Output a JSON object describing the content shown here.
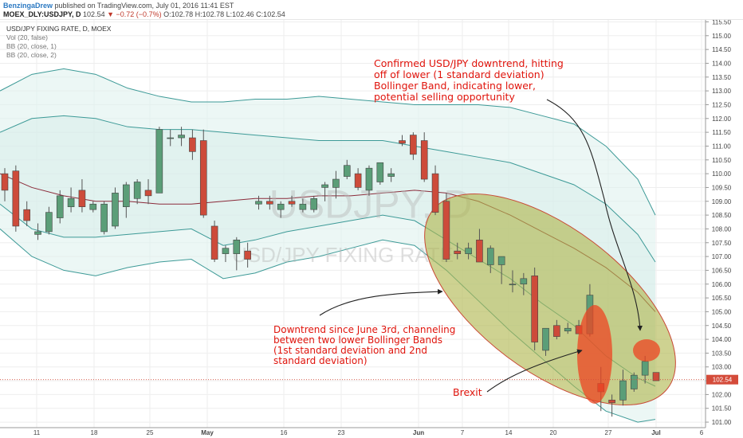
{
  "header": {
    "author": "BenzingaDrew",
    "publish_text": "published on TradingView.com, July 01, 2016 11:41 EST",
    "symbol": "MOEX_DLY:USDJPY, D",
    "last": "102.54",
    "change": "−0.72 (−0.7%)",
    "ohlc": "O:102.78 H:102.78 L:102.46 C:102.54"
  },
  "legend": {
    "title": "USD/JPY FIXING RATE, D, MOEX",
    "items": [
      "Vol (20, false)",
      "BB (20, close, 1)",
      "BB (20, close, 2)"
    ]
  },
  "watermark": {
    "big": "USDJPY, D",
    "small": "USD/JPY FIXING RATE"
  },
  "annotations": {
    "confirmed": [
      "Confirmed USD/JPY downtrend, hitting",
      "off of lower (1 standard deviation)",
      "Bollinger Band, indicating lower,",
      "potential selling opportunity"
    ],
    "downtrend": [
      "Downtrend since June 3rd, channeling",
      "between two lower Bollinger Bands",
      "(1st standard deviation and 2nd",
      "standard deviation)"
    ],
    "brexit": "Brexit"
  },
  "colors": {
    "up": "#5b9e78",
    "down": "#cd4b3a",
    "annotation": "#e0140c",
    "channel": "#b0b74d",
    "band": "#3d9a97",
    "mid": "#8b2b3a",
    "price_line": "#d44b3a"
  },
  "chart_data": {
    "type": "candlestick",
    "title": "USD/JPY FIXING RATE, D, MOEX",
    "current_price": "102.54",
    "y_axis": {
      "range": [
        100.8,
        115.6
      ],
      "ticks": [
        "101.00",
        "101.50",
        "102.00",
        "102.50",
        "103.00",
        "103.50",
        "104.00",
        "104.50",
        "105.00",
        "105.50",
        "106.00",
        "106.50",
        "107.00",
        "107.50",
        "108.00",
        "108.50",
        "109.00",
        "109.50",
        "110.00",
        "110.50",
        "111.00",
        "111.50",
        "112.00",
        "112.50",
        "113.00",
        "113.50",
        "114.00",
        "114.50",
        "115.00",
        "115.50"
      ]
    },
    "x_axis": {
      "labels": [
        "11",
        "18",
        "25",
        "May",
        "16",
        "23",
        "Jun",
        "7",
        "14",
        "20",
        "27",
        "Jul",
        "6"
      ]
    },
    "candles": [
      {
        "o": 110.0,
        "h": 110.2,
        "l": 109.0,
        "c": 109.4
      },
      {
        "o": 110.1,
        "h": 110.3,
        "l": 107.9,
        "c": 108.1
      },
      {
        "o": 108.7,
        "h": 109.0,
        "l": 108.1,
        "c": 108.3
      },
      {
        "o": 107.8,
        "h": 108.2,
        "l": 107.6,
        "c": 107.9
      },
      {
        "o": 107.9,
        "h": 108.8,
        "l": 107.8,
        "c": 108.6
      },
      {
        "o": 108.4,
        "h": 109.4,
        "l": 108.2,
        "c": 109.2
      },
      {
        "o": 108.8,
        "h": 109.5,
        "l": 108.6,
        "c": 109.1
      },
      {
        "o": 109.4,
        "h": 109.8,
        "l": 108.6,
        "c": 108.8
      },
      {
        "o": 108.7,
        "h": 109.0,
        "l": 108.6,
        "c": 108.9
      },
      {
        "o": 107.9,
        "h": 109.0,
        "l": 107.8,
        "c": 108.9
      },
      {
        "o": 108.1,
        "h": 109.5,
        "l": 108.0,
        "c": 109.3
      },
      {
        "o": 108.8,
        "h": 109.7,
        "l": 108.4,
        "c": 109.6
      },
      {
        "o": 109.1,
        "h": 109.8,
        "l": 108.9,
        "c": 109.7
      },
      {
        "o": 109.4,
        "h": 109.8,
        "l": 108.9,
        "c": 109.2
      },
      {
        "o": 109.3,
        "h": 111.7,
        "l": 109.3,
        "c": 111.6
      },
      {
        "o": 111.3,
        "h": 111.6,
        "l": 111.0,
        "c": 111.3
      },
      {
        "o": 111.3,
        "h": 111.7,
        "l": 111.0,
        "c": 111.4
      },
      {
        "o": 111.3,
        "h": 111.6,
        "l": 110.5,
        "c": 110.8
      },
      {
        "o": 111.2,
        "h": 111.6,
        "l": 108.4,
        "c": 108.5
      },
      {
        "o": 108.1,
        "h": 108.3,
        "l": 106.8,
        "c": 106.9
      },
      {
        "o": 107.1,
        "h": 107.4,
        "l": 106.8,
        "c": 107.3
      },
      {
        "o": 107.1,
        "h": 107.7,
        "l": 106.5,
        "c": 107.6
      },
      {
        "o": 107.2,
        "h": 107.5,
        "l": 106.6,
        "c": 106.9
      },
      {
        "o": 108.9,
        "h": 109.2,
        "l": 108.7,
        "c": 109.0
      },
      {
        "o": 109.0,
        "h": 109.2,
        "l": 108.7,
        "c": 108.9
      },
      {
        "o": 108.7,
        "h": 109.0,
        "l": 108.4,
        "c": 108.9
      },
      {
        "o": 109.0,
        "h": 109.2,
        "l": 108.8,
        "c": 108.9
      },
      {
        "o": 108.7,
        "h": 109.1,
        "l": 108.6,
        "c": 108.9
      },
      {
        "o": 108.7,
        "h": 109.2,
        "l": 108.6,
        "c": 109.1
      },
      {
        "o": 109.5,
        "h": 109.7,
        "l": 109.0,
        "c": 109.6
      },
      {
        "o": 109.5,
        "h": 110.1,
        "l": 109.1,
        "c": 109.8
      },
      {
        "o": 109.9,
        "h": 110.5,
        "l": 109.8,
        "c": 110.3
      },
      {
        "o": 110.0,
        "h": 110.2,
        "l": 109.4,
        "c": 109.5
      },
      {
        "o": 109.4,
        "h": 110.3,
        "l": 109.2,
        "c": 110.2
      },
      {
        "o": 109.7,
        "h": 110.4,
        "l": 109.6,
        "c": 110.4
      },
      {
        "o": 109.9,
        "h": 110.2,
        "l": 109.7,
        "c": 110.0
      },
      {
        "o": 111.2,
        "h": 111.4,
        "l": 111.0,
        "c": 111.1
      },
      {
        "o": 111.4,
        "h": 111.5,
        "l": 110.5,
        "c": 110.7
      },
      {
        "o": 111.2,
        "h": 111.5,
        "l": 109.7,
        "c": 109.8
      },
      {
        "o": 110.0,
        "h": 110.3,
        "l": 108.5,
        "c": 108.6
      },
      {
        "o": 109.0,
        "h": 109.3,
        "l": 106.8,
        "c": 106.9
      },
      {
        "o": 107.2,
        "h": 107.5,
        "l": 106.9,
        "c": 107.1
      },
      {
        "o": 107.1,
        "h": 107.5,
        "l": 106.9,
        "c": 107.3
      },
      {
        "o": 107.6,
        "h": 108.0,
        "l": 106.8,
        "c": 106.8
      },
      {
        "o": 106.7,
        "h": 107.4,
        "l": 106.4,
        "c": 107.3
      },
      {
        "o": 106.7,
        "h": 107.0,
        "l": 106.0,
        "c": 107.0
      },
      {
        "o": 106.0,
        "h": 106.5,
        "l": 105.7,
        "c": 106.0
      },
      {
        "o": 106.0,
        "h": 106.4,
        "l": 105.6,
        "c": 106.2
      },
      {
        "o": 106.3,
        "h": 106.6,
        "l": 103.6,
        "c": 103.9
      },
      {
        "o": 103.6,
        "h": 104.4,
        "l": 103.4,
        "c": 104.4
      },
      {
        "o": 104.5,
        "h": 104.7,
        "l": 104.0,
        "c": 104.1
      },
      {
        "o": 104.3,
        "h": 104.6,
        "l": 104.2,
        "c": 104.4
      },
      {
        "o": 104.5,
        "h": 104.7,
        "l": 104.2,
        "c": 104.2
      },
      {
        "o": 104.2,
        "h": 106.0,
        "l": 104.1,
        "c": 105.6
      },
      {
        "o": 102.4,
        "h": 103.0,
        "l": 101.4,
        "c": 102.1
      },
      {
        "o": 101.8,
        "h": 102.0,
        "l": 101.2,
        "c": 101.7
      },
      {
        "o": 101.8,
        "h": 102.9,
        "l": 101.6,
        "c": 102.5
      },
      {
        "o": 102.2,
        "h": 102.8,
        "l": 102.1,
        "c": 102.7
      },
      {
        "o": 102.7,
        "h": 103.4,
        "l": 102.4,
        "c": 103.2
      },
      {
        "o": 102.8,
        "h": 102.8,
        "l": 102.5,
        "c": 102.5
      }
    ]
  }
}
